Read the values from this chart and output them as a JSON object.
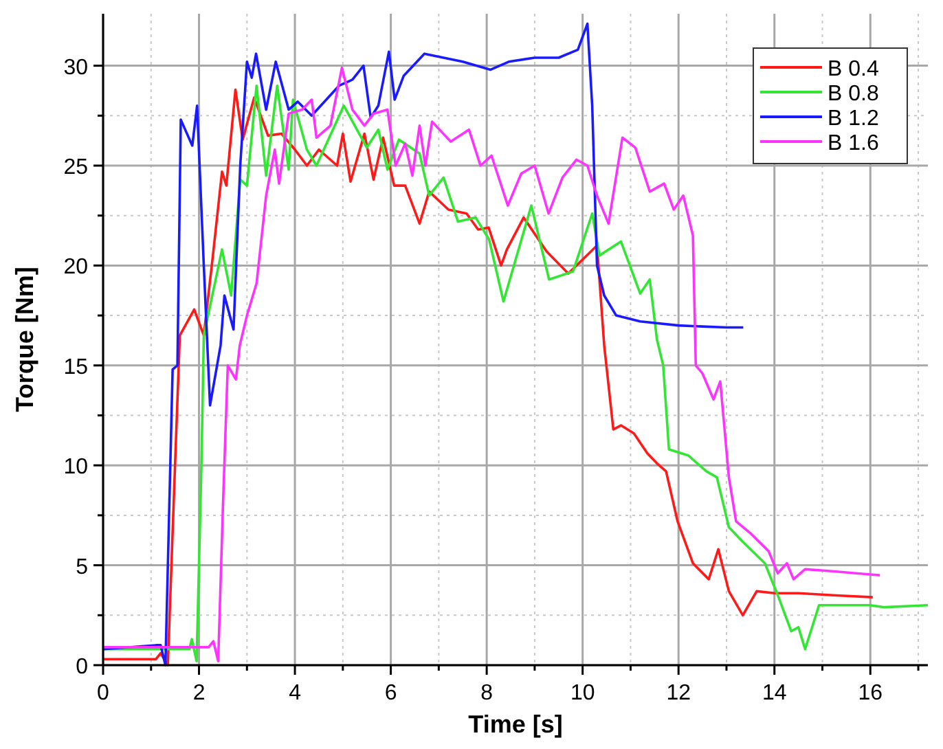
{
  "chart_data": {
    "type": "line",
    "xlabel": "Time [s]",
    "ylabel": "Torque [Nm]",
    "xlim": [
      0,
      17.2
    ],
    "ylim": [
      0,
      32.6
    ],
    "xticks": [
      0,
      {
        "value": 1,
        "label": null
      },
      2,
      {
        "value": 3,
        "label": null
      },
      4,
      {
        "value": 5,
        "label": null
      },
      6,
      {
        "value": 7,
        "label": null
      },
      8,
      {
        "value": 9,
        "label": null
      },
      10,
      {
        "value": 11,
        "label": null
      },
      12,
      {
        "value": 13,
        "label": null
      },
      14,
      {
        "value": 15,
        "label": null
      },
      16,
      {
        "value": 17,
        "label": null
      }
    ],
    "yticks": [
      0,
      {
        "value": 2.5,
        "label": null
      },
      5,
      {
        "value": 7.5,
        "label": null
      },
      10,
      {
        "value": 12.5,
        "label": null
      },
      15,
      {
        "value": 17.5,
        "label": null
      },
      20,
      {
        "value": 22.5,
        "label": null
      },
      25,
      {
        "value": 27.5,
        "label": null
      },
      30
    ],
    "grid": true,
    "legend": "top right",
    "line_style": "solid",
    "marker": "none",
    "series": [
      {
        "name": "B 0.4",
        "color": "#ff1a1a",
        "x": [
          0,
          1.1,
          1.2,
          1.35,
          1.5,
          1.6,
          1.9,
          2.1,
          2.29,
          2.48,
          2.57,
          2.76,
          2.91,
          3.15,
          3.44,
          3.72,
          4.0,
          4.25,
          4.5,
          4.88,
          5.0,
          5.16,
          5.45,
          5.64,
          5.84,
          6.07,
          6.3,
          6.6,
          6.8,
          7.2,
          7.58,
          7.82,
          8.04,
          8.3,
          8.42,
          8.77,
          9.25,
          9.7,
          10.0,
          10.3,
          10.45,
          10.64,
          10.8,
          11.07,
          11.35,
          11.55,
          11.74,
          11.98,
          12.3,
          12.63,
          12.83,
          13.05,
          13.34,
          13.63,
          14.0,
          14.5,
          15.23,
          16.05
        ],
        "values": [
          0.3,
          0.3,
          0.6,
          0,
          10,
          16.5,
          17.8,
          16.5,
          20.5,
          24.7,
          24,
          28.8,
          26.3,
          28.4,
          26.5,
          26.6,
          25.8,
          25,
          25.8,
          25,
          26.6,
          24.2,
          26.6,
          24.3,
          26.4,
          24,
          24,
          22.1,
          23.7,
          22.8,
          22.6,
          21.8,
          21.9,
          20,
          20.8,
          22.4,
          20.7,
          19.6,
          20.3,
          21,
          16,
          11.8,
          12,
          11.6,
          10.6,
          10.1,
          9.7,
          7.2,
          5.1,
          4.3,
          5.8,
          3.7,
          2.5,
          3.7,
          3.6,
          3.6,
          3.5,
          3.4
        ]
      },
      {
        "name": "B 0.8",
        "color": "#33e633",
        "x": [
          0,
          1.8,
          1.85,
          1.95,
          2.05,
          2.1,
          2.48,
          2.67,
          2.86,
          3.0,
          3.2,
          3.4,
          3.63,
          3.87,
          3.96,
          4.25,
          4.45,
          5.02,
          5.5,
          5.74,
          5.93,
          6.17,
          6.6,
          6.8,
          7.1,
          7.4,
          7.77,
          8.05,
          8.35,
          8.93,
          9.3,
          9.8,
          10.2,
          10.35,
          10.8,
          11.2,
          11.4,
          11.55,
          11.68,
          11.8,
          12.2,
          12.58,
          12.8,
          13.05,
          13.33,
          13.8,
          14.07,
          14.35,
          14.5,
          14.64,
          14.93,
          15.98,
          16.3,
          17.2
        ],
        "values": [
          0.8,
          0.8,
          1.3,
          0.2,
          10,
          16.5,
          20.8,
          18.5,
          24.3,
          24,
          29,
          24.5,
          29,
          24.8,
          28.3,
          25.8,
          25,
          28,
          25.9,
          26.8,
          24.8,
          26.3,
          25.6,
          23.5,
          24.4,
          22.2,
          22.4,
          21.3,
          18.2,
          23,
          19.3,
          19.7,
          22.6,
          20.5,
          21.2,
          18.6,
          19.3,
          16.3,
          15,
          10.8,
          10.5,
          9.7,
          9.4,
          6.9,
          6.2,
          5.1,
          3.5,
          1.7,
          1.9,
          0.8,
          3,
          3,
          2.9,
          3
        ]
      },
      {
        "name": "B 1.2",
        "color": "#1a1aff",
        "x": [
          0,
          1.1,
          1.2,
          1.3,
          1.45,
          1.55,
          1.62,
          1.86,
          1.96,
          2.1,
          2.23,
          2.45,
          2.53,
          2.72,
          2.86,
          3.0,
          3.1,
          3.19,
          3.4,
          3.6,
          3.87,
          4.06,
          4.35,
          4.92,
          5.2,
          5.43,
          5.58,
          5.74,
          5.96,
          6.08,
          6.27,
          6.7,
          7.5,
          8.08,
          8.46,
          9.0,
          9.5,
          9.9,
          10.1,
          10.2,
          10.3,
          10.45,
          10.7,
          11.2,
          12.0,
          13.0,
          13.35
        ],
        "values": [
          0.8,
          1,
          1,
          0,
          14.8,
          15,
          27.3,
          26,
          28,
          20,
          13,
          16,
          18.5,
          16.8,
          25,
          30.2,
          29.4,
          30.6,
          27.8,
          30.2,
          27.8,
          28.2,
          27.5,
          29,
          29.3,
          30,
          27.4,
          28,
          30.7,
          28.3,
          29.5,
          30.6,
          30.2,
          29.8,
          30.2,
          30.4,
          30.4,
          30.8,
          32.1,
          28,
          20,
          18.5,
          17.5,
          17.2,
          17,
          16.9,
          16.9
        ]
      },
      {
        "name": "B 1.6",
        "color": "#ff33ff",
        "x": [
          0,
          2.2,
          2.3,
          2.4,
          2.5,
          2.6,
          2.77,
          2.85,
          3.0,
          3.2,
          3.4,
          3.58,
          3.67,
          3.87,
          4.15,
          4.35,
          4.45,
          4.74,
          4.98,
          5.2,
          5.45,
          5.64,
          5.93,
          6.1,
          6.3,
          6.45,
          6.6,
          6.72,
          6.86,
          7.25,
          7.63,
          7.87,
          8.1,
          8.44,
          8.72,
          9.0,
          9.29,
          9.58,
          9.87,
          10.1,
          10.3,
          10.54,
          10.83,
          11.1,
          11.4,
          11.7,
          11.9,
          12.1,
          12.3,
          12.36,
          12.5,
          12.73,
          12.87,
          13.05,
          13.2,
          13.5,
          13.88,
          14.07,
          14.26,
          14.4,
          14.64,
          15.2,
          16.2
        ],
        "values": [
          0.9,
          0.9,
          1.2,
          0.2,
          8,
          15,
          14.3,
          16,
          17.5,
          19.1,
          23.5,
          25.8,
          24.1,
          27.6,
          27.8,
          28.3,
          26.4,
          27,
          29.9,
          27.8,
          27,
          27.6,
          27.8,
          25,
          26.1,
          24.5,
          27,
          25,
          27.2,
          26.2,
          26.8,
          25,
          25.5,
          23,
          24.6,
          25,
          22.6,
          24.4,
          25.3,
          25,
          23.5,
          22.1,
          26.4,
          25.9,
          23.7,
          24.1,
          22.8,
          23.5,
          21.5,
          15,
          14.6,
          13.3,
          14.2,
          9.4,
          7.2,
          6.6,
          5.7,
          4.6,
          5.1,
          4.3,
          4.8,
          4.7,
          4.5
        ]
      }
    ]
  }
}
